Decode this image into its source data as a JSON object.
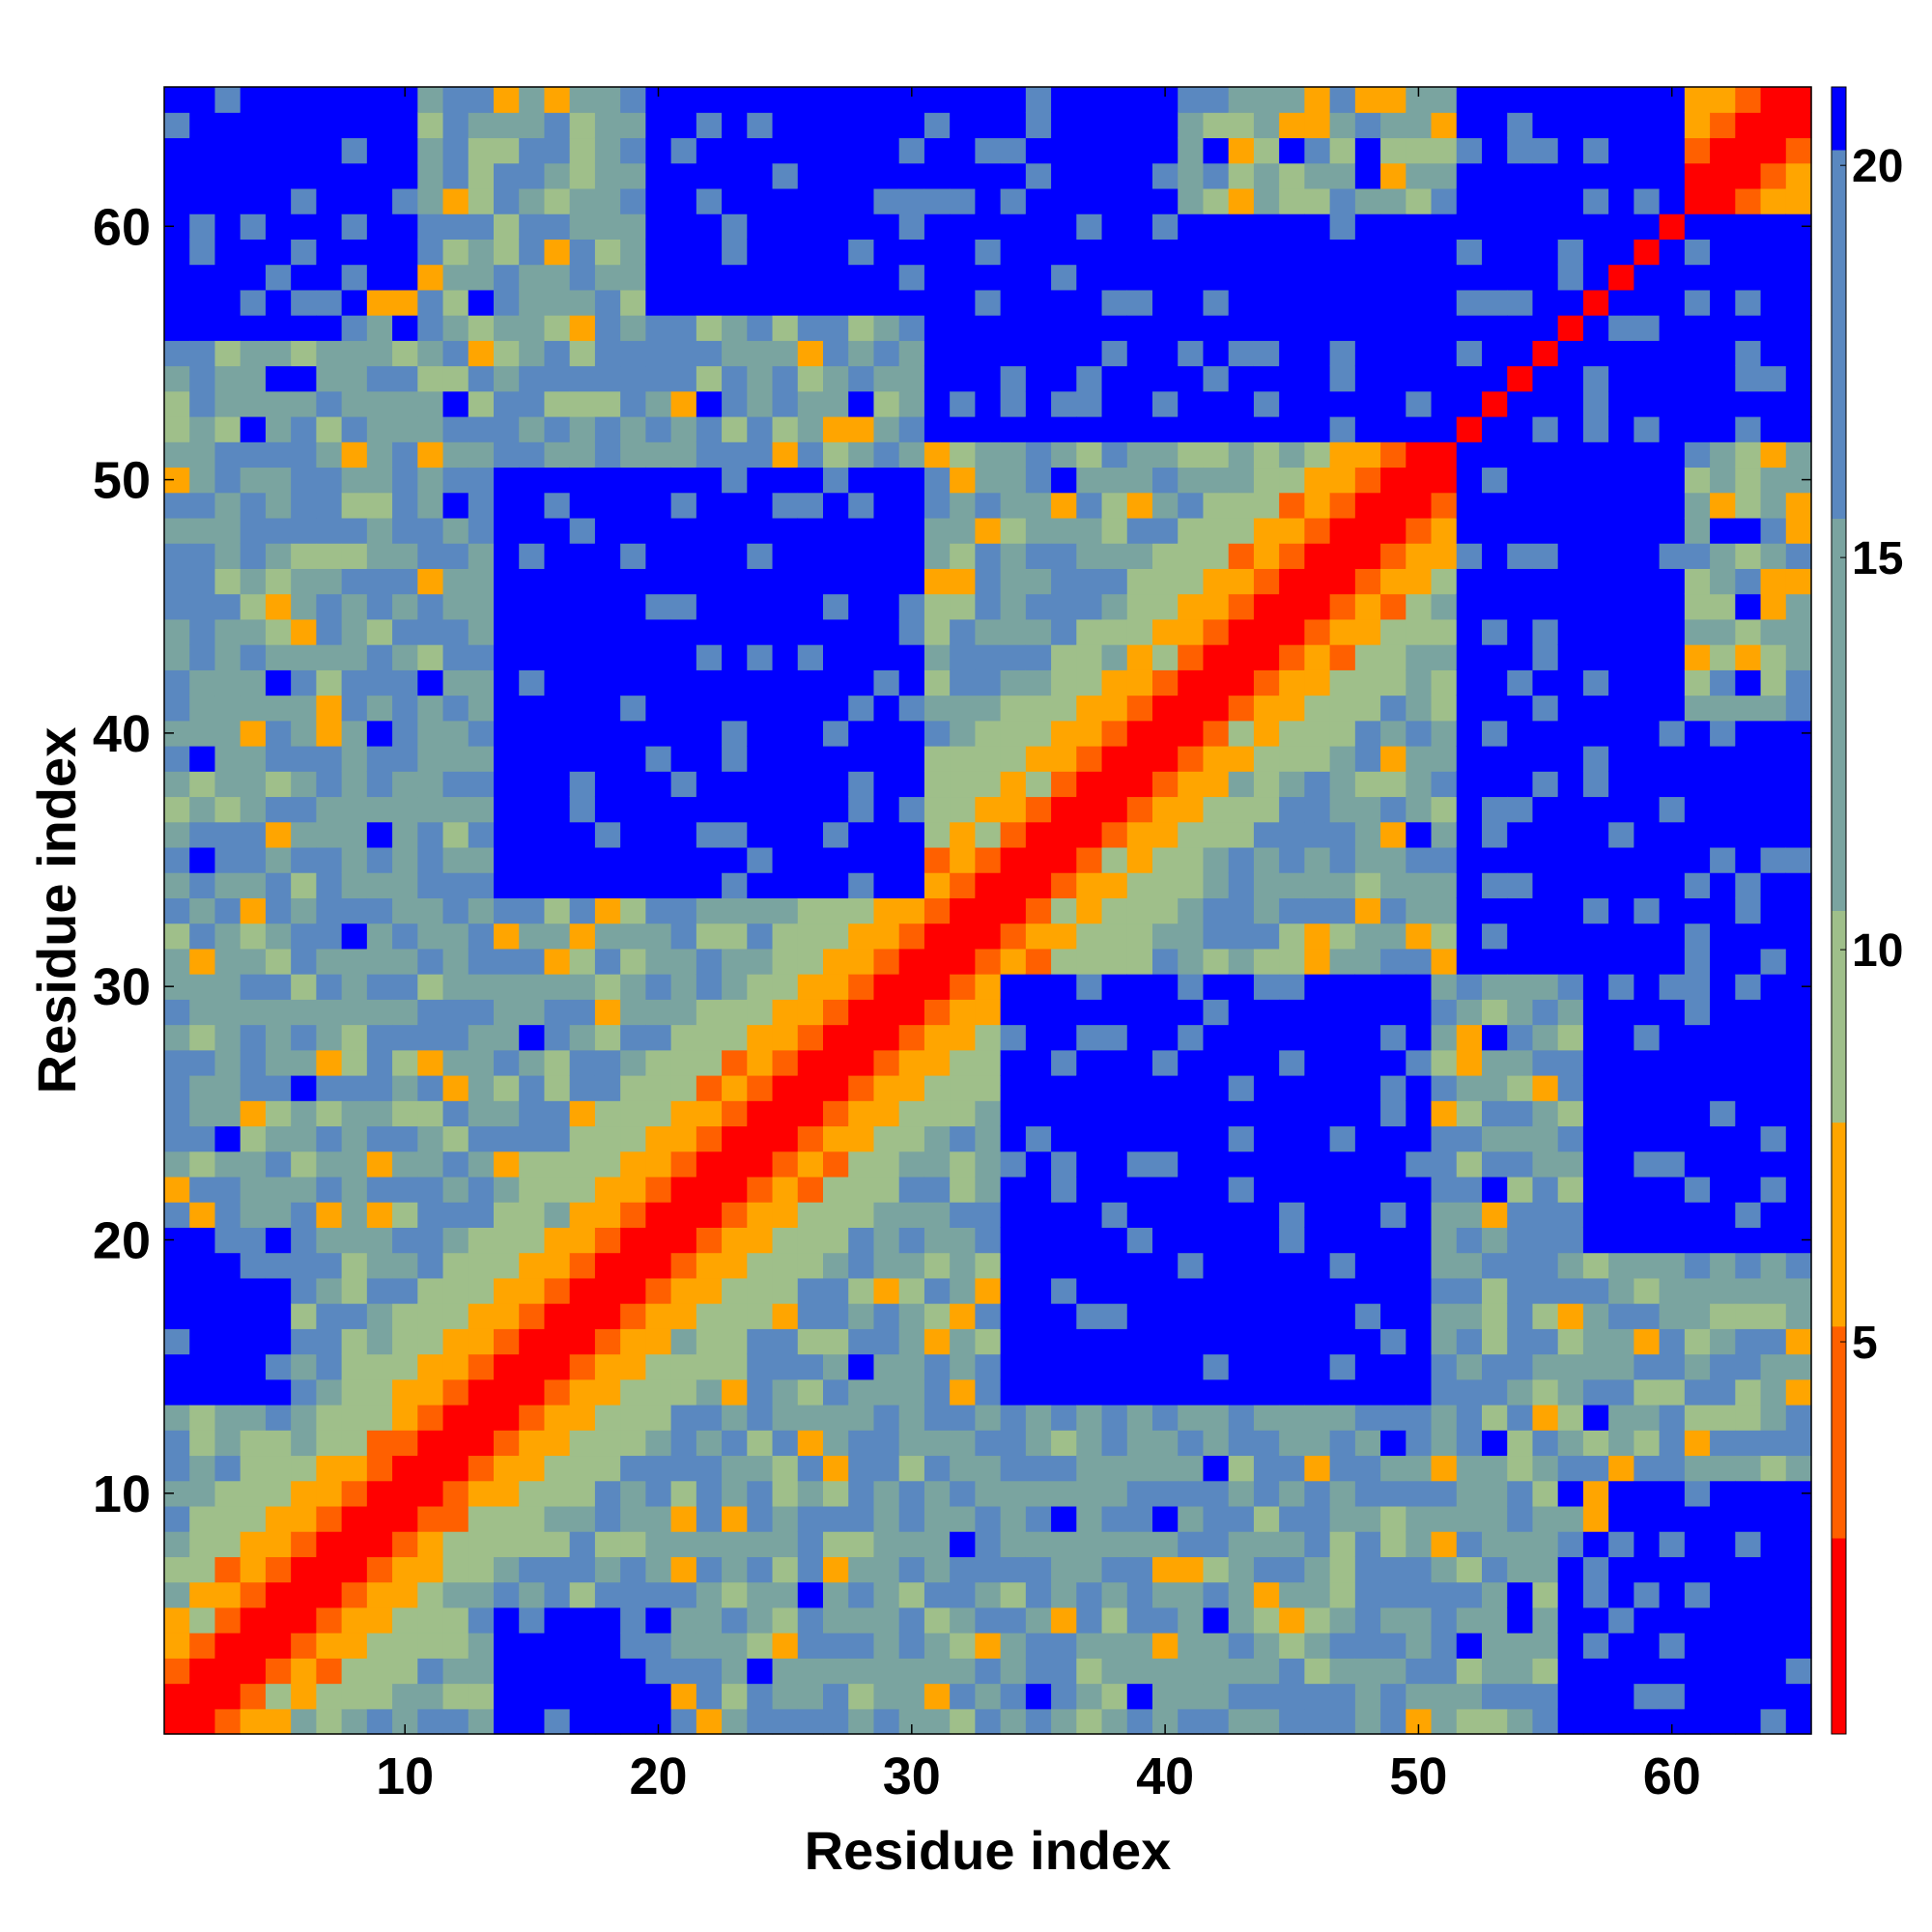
{
  "chart_data": {
    "type": "heatmap",
    "title": "",
    "xlabel": "Residue index",
    "ylabel": "Residue index",
    "n_residues": 65,
    "xlim": [
      0.5,
      65.5
    ],
    "ylim": [
      0.5,
      65.5
    ],
    "x_ticks": [
      10,
      20,
      30,
      40,
      50,
      60
    ],
    "y_ticks": [
      10,
      20,
      30,
      40,
      50,
      60
    ],
    "colorbar": {
      "range": [
        0,
        21
      ],
      "ticks": [
        5,
        10,
        15,
        20
      ],
      "colors": [
        "#ff0000",
        "#ff6000",
        "#ffa500",
        "#9fbf8a",
        "#7aa4a0",
        "#5a88c0",
        "#0000ff"
      ],
      "boundaries": [
        0,
        2.5,
        5.2,
        7.8,
        10.5,
        15.5,
        20.2,
        21
      ]
    },
    "note_values": "Symmetric residue-residue distance map; values estimated from color: ~1-2 on diagonal, rising with |i-j| band, blue (>20) saturated regions.",
    "matrix_model": {
      "base": "distance grows with |i-j| saturating near 20+",
      "blue_blocks": [
        {
          "i": [
            14,
            30
          ],
          "j": [
            34,
            50
          ]
        },
        {
          "i": [
            1,
            8
          ],
          "j": [
            56,
            65
          ]
        },
        {
          "i": [
            58,
            65
          ],
          "j": [
            1,
            10
          ]
        },
        {
          "i": [
            1,
            5
          ],
          "j": [
            14,
            20
          ]
        },
        {
          "i": [
            31,
            65
          ],
          "j": [
            52,
            60
          ]
        },
        {
          "i": [
            57,
            65
          ],
          "j": [
            20,
            40
          ]
        }
      ]
    }
  }
}
